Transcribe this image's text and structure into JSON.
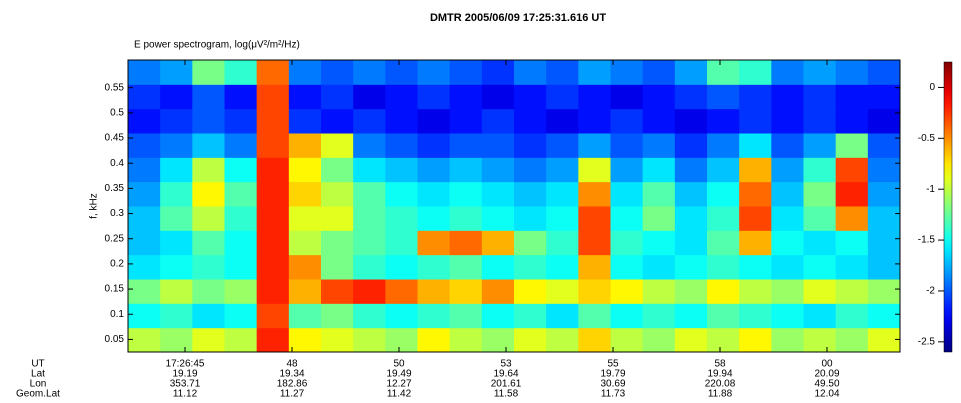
{
  "chart_data": {
    "type": "heatmap",
    "title": "DMTR  2005/06/09  17:25:31.616  UT",
    "subtitle": "E power spectrogram, log(μV²/m²/Hz)",
    "ylabel": "f, kHz",
    "colormap": "jet",
    "ylim": [
      0.025,
      0.605
    ],
    "yticks": [
      0.05,
      0.1,
      0.15,
      0.2,
      0.25,
      0.3,
      0.35,
      0.4,
      0.45,
      0.5,
      0.55
    ],
    "clim": [
      -2.6,
      0.25
    ],
    "cticks": [
      0,
      -0.5,
      -1,
      -1.5,
      -2,
      -2.5
    ],
    "z": [
      [
        -1.0,
        -1.1,
        -0.9,
        -1.0,
        -0.2,
        -0.8,
        -0.9,
        -1.0,
        -1.1,
        -0.8,
        -1.0,
        -1.1,
        -0.9,
        -1.0,
        -0.7,
        -1.0,
        -1.1,
        -0.9,
        -1.0,
        -0.8,
        -1.1,
        -1.0,
        -1.1,
        -0.9
      ],
      [
        -1.5,
        -1.4,
        -1.6,
        -1.5,
        -0.3,
        -1.3,
        -1.2,
        -1.4,
        -1.5,
        -1.4,
        -1.3,
        -1.5,
        -1.4,
        -1.6,
        -1.3,
        -1.5,
        -1.4,
        -1.5,
        -1.3,
        -1.4,
        -1.5,
        -1.6,
        -1.4,
        -1.5
      ],
      [
        -1.2,
        -1.0,
        -1.2,
        -1.1,
        -0.2,
        -0.6,
        -0.3,
        -0.2,
        -0.4,
        -0.6,
        -0.7,
        -0.5,
        -0.8,
        -0.9,
        -0.7,
        -0.8,
        -1.0,
        -1.1,
        -0.8,
        -1.0,
        -1.1,
        -0.9,
        -1.0,
        -1.1
      ],
      [
        -1.6,
        -1.5,
        -1.4,
        -1.5,
        -0.2,
        -0.5,
        -1.2,
        -1.4,
        -1.5,
        -1.4,
        -1.3,
        -1.5,
        -1.4,
        -1.5,
        -0.6,
        -1.5,
        -1.6,
        -1.5,
        -1.4,
        -1.5,
        -1.6,
        -1.5,
        -1.6,
        -1.7
      ],
      [
        -1.7,
        -1.6,
        -1.3,
        -1.5,
        -0.2,
        -1.0,
        -1.2,
        -1.3,
        -1.4,
        -0.5,
        -0.4,
        -0.6,
        -1.2,
        -1.4,
        -0.3,
        -1.4,
        -1.5,
        -1.6,
        -1.3,
        -0.6,
        -1.5,
        -1.6,
        -1.5,
        -1.7
      ],
      [
        -1.7,
        -1.3,
        -1.0,
        -1.4,
        -0.2,
        -0.9,
        -0.9,
        -1.3,
        -1.4,
        -1.5,
        -1.4,
        -1.5,
        -1.6,
        -1.5,
        -0.3,
        -1.5,
        -1.2,
        -1.6,
        -1.4,
        -0.3,
        -1.6,
        -1.3,
        -0.5,
        -1.7
      ],
      [
        -1.8,
        -1.4,
        -0.8,
        -1.3,
        -0.2,
        -0.7,
        -1.0,
        -1.3,
        -1.5,
        -1.6,
        -1.5,
        -1.6,
        -1.7,
        -1.6,
        -0.5,
        -1.6,
        -1.3,
        -1.7,
        -1.5,
        -0.4,
        -1.7,
        -1.2,
        -0.2,
        -1.8
      ],
      [
        -1.9,
        -1.6,
        -1.0,
        -1.5,
        -0.2,
        -0.8,
        -1.2,
        -1.6,
        -1.7,
        -1.8,
        -1.7,
        -1.8,
        -1.9,
        -1.8,
        -0.9,
        -1.8,
        -1.6,
        -1.9,
        -1.7,
        -0.6,
        -1.8,
        -1.4,
        -0.3,
        -1.9
      ],
      [
        -2.0,
        -1.9,
        -1.7,
        -1.9,
        -0.3,
        -0.6,
        -0.9,
        -1.9,
        -2.0,
        -2.1,
        -2.0,
        -2.0,
        -2.1,
        -2.0,
        -1.8,
        -2.0,
        -1.9,
        -2.1,
        -1.9,
        -1.6,
        -2.0,
        -1.8,
        -1.2,
        -2.0
      ],
      [
        -2.2,
        -2.1,
        -2.0,
        -2.1,
        -0.3,
        -2.1,
        -2.2,
        -2.1,
        -2.2,
        -2.3,
        -2.2,
        -2.1,
        -2.2,
        -2.3,
        -2.2,
        -2.1,
        -2.2,
        -2.3,
        -2.2,
        -2.1,
        -2.2,
        -2.1,
        -2.2,
        -2.3
      ],
      [
        -2.1,
        -2.2,
        -2.0,
        -2.2,
        -0.3,
        -2.2,
        -2.1,
        -2.3,
        -2.2,
        -2.1,
        -2.2,
        -2.3,
        -2.2,
        -2.1,
        -2.2,
        -2.3,
        -2.2,
        -2.1,
        -2.0,
        -2.1,
        -2.2,
        -2.1,
        -2.2,
        -2.2
      ],
      [
        -1.9,
        -1.8,
        -1.2,
        -1.4,
        -0.4,
        -1.9,
        -2.0,
        -1.9,
        -2.0,
        -1.9,
        -2.0,
        -2.1,
        -1.9,
        -2.0,
        -1.8,
        -1.9,
        -2.0,
        -1.8,
        -1.3,
        -1.4,
        -1.9,
        -1.8,
        -1.9,
        -2.0
      ]
    ],
    "ephemeris": {
      "labels": [
        "UT",
        "Lat",
        "Lon",
        "Geom.Lat"
      ],
      "columns": [
        [
          "17:26:45",
          "19.19",
          "353.71",
          "11.12"
        ],
        [
          "48",
          "19.34",
          "182.86",
          "11.27"
        ],
        [
          "50",
          "19.49",
          "12.27",
          "11.42"
        ],
        [
          "53",
          "19.64",
          "201.61",
          "11.58"
        ],
        [
          "55",
          "19.79",
          "30.69",
          "11.73"
        ],
        [
          "58",
          "19.94",
          "220.08",
          "11.88"
        ],
        [
          "00",
          "20.09",
          "49.50",
          "12.04"
        ]
      ]
    }
  }
}
